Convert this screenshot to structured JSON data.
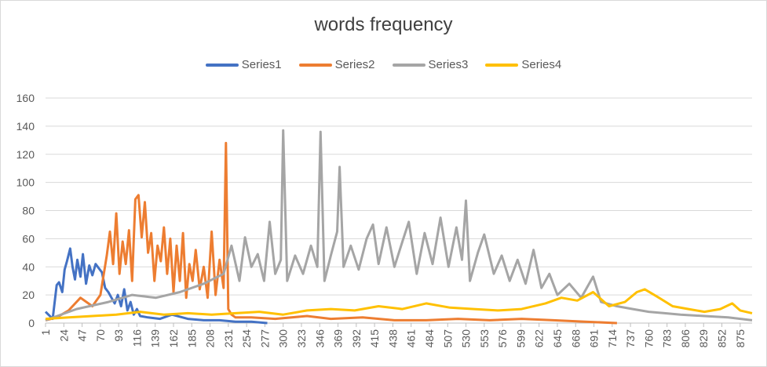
{
  "chart_data": {
    "type": "line",
    "title": "words frequency",
    "xlabel": "",
    "ylabel": "",
    "ylim": [
      0,
      160
    ],
    "xlim": [
      1,
      890
    ],
    "yticks": [
      0,
      20,
      40,
      60,
      80,
      100,
      120,
      140,
      160
    ],
    "xticks": [
      1,
      24,
      47,
      70,
      93,
      116,
      139,
      162,
      185,
      208,
      231,
      254,
      277,
      300,
      323,
      346,
      369,
      392,
      415,
      438,
      461,
      484,
      507,
      530,
      553,
      576,
      599,
      622,
      645,
      668,
      691,
      714,
      737,
      760,
      783,
      806,
      829,
      852,
      875
    ],
    "grid": true,
    "legend_position": "top",
    "series": [
      {
        "name": "Series1",
        "color": "#4472C4",
        "x": [
          1,
          10,
          15,
          18,
          22,
          25,
          28,
          32,
          35,
          38,
          41,
          45,
          48,
          52,
          56,
          60,
          64,
          68,
          72,
          76,
          80,
          84,
          88,
          92,
          96,
          100,
          104,
          108,
          112,
          116,
          120,
          130,
          145,
          160,
          180,
          200,
          220,
          240,
          260,
          280
        ],
        "y": [
          8,
          3,
          27,
          29,
          22,
          38,
          44,
          53,
          40,
          31,
          45,
          33,
          49,
          28,
          41,
          34,
          42,
          39,
          36,
          25,
          22,
          18,
          14,
          20,
          12,
          24,
          9,
          15,
          6,
          10,
          5,
          4,
          3,
          6,
          3,
          2,
          2,
          1,
          1,
          0
        ]
      },
      {
        "name": "Series2",
        "color": "#ED7D31",
        "x": [
          1,
          15,
          30,
          45,
          60,
          70,
          78,
          82,
          86,
          90,
          94,
          98,
          102,
          106,
          110,
          114,
          118,
          122,
          126,
          130,
          134,
          138,
          142,
          146,
          150,
          154,
          158,
          162,
          166,
          170,
          174,
          178,
          182,
          186,
          190,
          195,
          200,
          205,
          210,
          215,
          220,
          225,
          228,
          231,
          235,
          240,
          260,
          290,
          330,
          360,
          400,
          440,
          480,
          520,
          560,
          600,
          640,
          680,
          720
        ],
        "y": [
          2,
          4,
          9,
          18,
          12,
          20,
          48,
          65,
          42,
          78,
          35,
          58,
          42,
          66,
          30,
          88,
          91,
          61,
          86,
          50,
          64,
          30,
          55,
          44,
          68,
          35,
          60,
          22,
          55,
          30,
          64,
          18,
          42,
          30,
          52,
          24,
          40,
          18,
          65,
          20,
          45,
          25,
          128,
          10,
          6,
          4,
          4,
          3,
          5,
          3,
          4,
          2,
          2,
          3,
          2,
          3,
          2,
          1,
          0
        ]
      },
      {
        "name": "Series3",
        "color": "#A5A5A5",
        "x": [
          1,
          40,
          80,
          110,
          140,
          170,
          200,
          225,
          235,
          245,
          252,
          260,
          268,
          276,
          283,
          290,
          297,
          300,
          305,
          315,
          325,
          335,
          343,
          347,
          352,
          360,
          368,
          371,
          376,
          385,
          395,
          405,
          413,
          420,
          430,
          440,
          450,
          458,
          468,
          478,
          488,
          498,
          508,
          518,
          525,
          530,
          535,
          545,
          553,
          565,
          575,
          585,
          595,
          605,
          615,
          625,
          635,
          645,
          660,
          675,
          690,
          700,
          720,
          740,
          760,
          780,
          800,
          830,
          860,
          890
        ],
        "y": [
          2,
          10,
          15,
          20,
          18,
          22,
          28,
          35,
          55,
          30,
          61,
          40,
          49,
          30,
          72,
          35,
          45,
          137,
          30,
          48,
          35,
          55,
          40,
          136,
          30,
          48,
          65,
          111,
          40,
          55,
          38,
          60,
          70,
          42,
          68,
          40,
          58,
          72,
          35,
          64,
          42,
          75,
          40,
          68,
          45,
          87,
          30,
          50,
          63,
          35,
          48,
          30,
          45,
          28,
          52,
          25,
          35,
          20,
          28,
          18,
          33,
          15,
          12,
          10,
          8,
          7,
          6,
          5,
          4,
          2
        ]
      },
      {
        "name": "Series4",
        "color": "#FFC000",
        "x": [
          1,
          30,
          60,
          90,
          120,
          150,
          180,
          210,
          240,
          270,
          300,
          330,
          360,
          390,
          420,
          450,
          480,
          510,
          540,
          570,
          600,
          630,
          650,
          670,
          690,
          710,
          730,
          745,
          755,
          770,
          790,
          810,
          830,
          850,
          865,
          875,
          890
        ],
        "y": [
          3,
          4,
          5,
          6,
          8,
          6,
          7,
          6,
          7,
          8,
          6,
          9,
          10,
          9,
          12,
          10,
          14,
          11,
          10,
          9,
          10,
          14,
          18,
          16,
          22,
          12,
          15,
          22,
          24,
          19,
          12,
          10,
          8,
          10,
          14,
          9,
          7
        ]
      }
    ]
  }
}
